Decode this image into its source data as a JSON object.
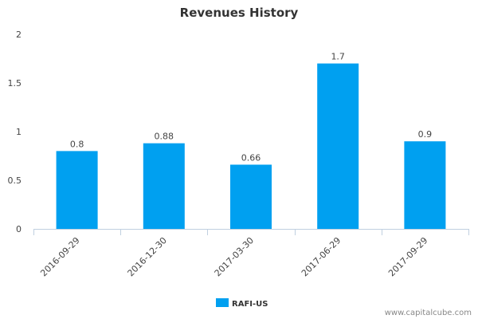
{
  "chart_data": {
    "type": "bar",
    "title": "Revenues History",
    "categories": [
      "2016-09-29",
      "2016-12-30",
      "2017-03-30",
      "2017-06-29",
      "2017-09-29"
    ],
    "series": [
      {
        "name": "RAFI-US",
        "values": [
          0.8,
          0.88,
          0.66,
          1.7,
          0.9
        ],
        "data_labels": [
          "0.8",
          "0.88",
          "0.66",
          "1.7",
          "0.9"
        ],
        "color": "#00a0f0"
      }
    ],
    "xlabel": "",
    "ylabel": "",
    "ylim": [
      0,
      2
    ],
    "yticks": [
      0,
      0.5,
      1,
      1.5,
      2
    ],
    "ytick_labels": [
      "0",
      "0.5",
      "1",
      "1.5",
      "2"
    ],
    "grid": false,
    "legend_position": "bottom-center"
  },
  "credit": "www.capitalcube.com",
  "colors": {
    "bar": "#00a0f0",
    "axis": "#c0d0e0",
    "text": "#444444"
  }
}
